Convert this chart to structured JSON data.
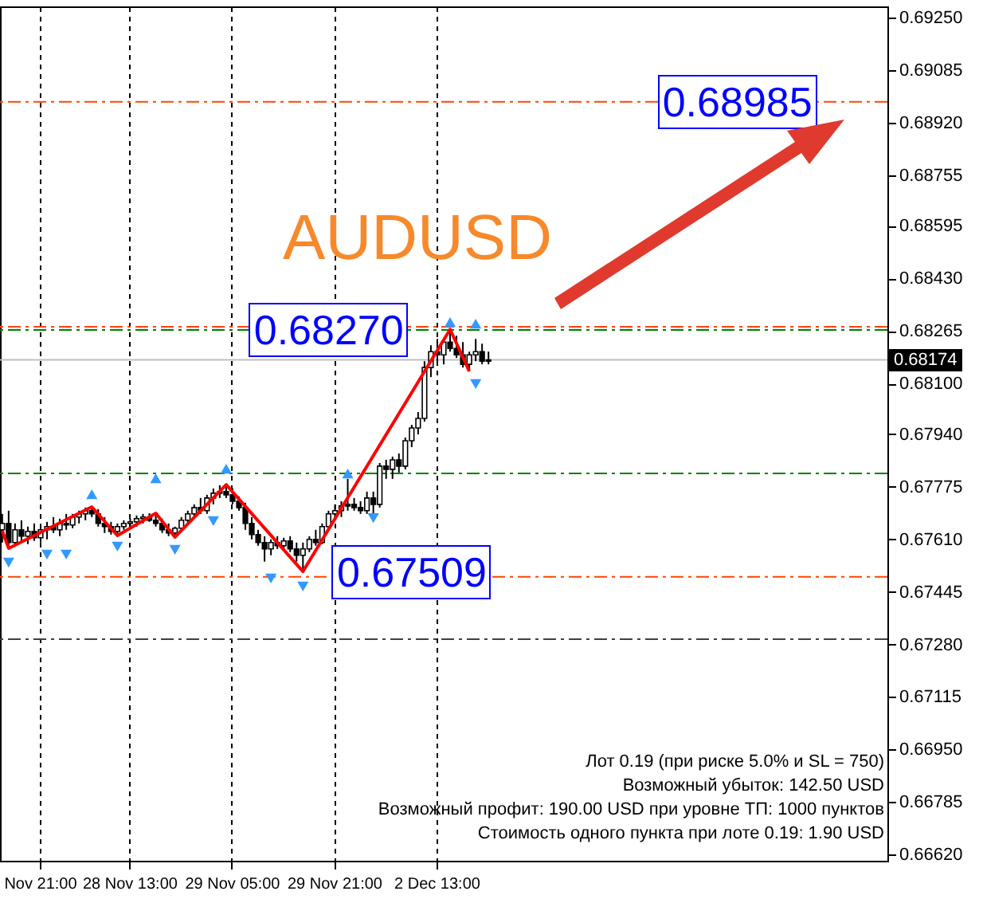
{
  "chart_data": {
    "type": "candlestick",
    "title": "AUDUSD",
    "categories": [
      null,
      null,
      null,
      null,
      null,
      null,
      "Nov 21:00",
      null,
      null,
      null,
      null,
      null,
      null,
      null,
      null,
      null,
      null,
      null,
      null,
      null,
      "28 Nov 13:00",
      null,
      null,
      null,
      null,
      null,
      null,
      null,
      null,
      null,
      null,
      null,
      null,
      null,
      null,
      null,
      "29 Nov 05:00",
      null,
      null,
      null,
      null,
      null,
      null,
      null,
      null,
      null,
      null,
      null,
      null,
      null,
      null,
      null,
      "29 Nov 21:00",
      null,
      null,
      null,
      null,
      null,
      null,
      null,
      null,
      null,
      null,
      null,
      null,
      null,
      null,
      null,
      "2 Dec 13:00",
      null,
      null,
      null,
      null,
      null,
      null,
      null,
      null,
      null,
      null,
      null,
      null,
      null,
      null,
      null,
      null,
      null,
      null,
      null,
      null,
      null,
      null,
      null,
      null,
      null,
      null,
      null,
      null,
      null,
      null,
      null,
      null,
      null,
      null,
      null,
      null,
      null,
      null,
      null,
      null,
      null,
      null,
      null,
      null,
      null,
      null,
      null,
      null,
      null,
      null,
      null,
      null,
      null,
      null,
      null,
      null,
      null,
      null,
      null,
      null,
      null,
      null,
      null,
      null,
      null,
      null,
      null,
      null,
      null,
      null
    ],
    "ohlc": [
      [
        0.6764,
        0.6769,
        0.676,
        0.6766
      ],
      [
        0.6766,
        0.677,
        0.67582,
        0.676
      ],
      [
        0.676,
        0.6766,
        0.6759,
        0.6764
      ],
      [
        0.6764,
        0.6767,
        0.676,
        0.6762
      ],
      [
        0.6762,
        0.6765,
        0.67595,
        0.67635
      ],
      [
        0.67635,
        0.6766,
        0.67605,
        0.67615
      ],
      [
        0.67615,
        0.6765,
        0.676,
        0.6764
      ],
      [
        0.6764,
        0.67665,
        0.6761,
        0.6765
      ],
      [
        0.6765,
        0.6768,
        0.6763,
        0.6764
      ],
      [
        0.6764,
        0.67675,
        0.6762,
        0.6766
      ],
      [
        0.6766,
        0.6769,
        0.6764,
        0.67655
      ],
      [
        0.67655,
        0.6769,
        0.67645,
        0.6768
      ],
      [
        0.6768,
        0.677,
        0.6766,
        0.6769
      ],
      [
        0.6769,
        0.6771,
        0.6767,
        0.677
      ],
      [
        0.677,
        0.67712,
        0.6768,
        0.6769
      ],
      [
        0.6769,
        0.67705,
        0.6765,
        0.6766
      ],
      [
        0.6766,
        0.6768,
        0.6763,
        0.6765
      ],
      [
        0.6765,
        0.67665,
        0.67625,
        0.67635
      ],
      [
        0.67635,
        0.6766,
        0.67622,
        0.6765
      ],
      [
        0.6765,
        0.6767,
        0.6764,
        0.6766
      ],
      [
        0.6766,
        0.67675,
        0.67645,
        0.67665
      ],
      [
        0.67665,
        0.67685,
        0.6765,
        0.67675
      ],
      [
        0.67675,
        0.6769,
        0.6766,
        0.6768
      ],
      [
        0.6768,
        0.67692,
        0.67665,
        0.6767
      ],
      [
        0.6767,
        0.67692,
        0.6765,
        0.6766
      ],
      [
        0.6766,
        0.67675,
        0.6763,
        0.6764
      ],
      [
        0.6764,
        0.6766,
        0.6762,
        0.6763
      ],
      [
        0.6763,
        0.6765,
        0.67617,
        0.67645
      ],
      [
        0.67645,
        0.6768,
        0.6764,
        0.6767
      ],
      [
        0.6767,
        0.677,
        0.6766,
        0.6769
      ],
      [
        0.6769,
        0.6772,
        0.6768,
        0.6771
      ],
      [
        0.6771,
        0.6774,
        0.6769,
        0.677
      ],
      [
        0.677,
        0.6775,
        0.6769,
        0.6774
      ],
      [
        0.6774,
        0.6777,
        0.6772,
        0.67755
      ],
      [
        0.67755,
        0.6778,
        0.6774,
        0.6776
      ],
      [
        0.6776,
        0.67782,
        0.6774,
        0.6775
      ],
      [
        0.6775,
        0.6777,
        0.6772,
        0.6773
      ],
      [
        0.6773,
        0.67745,
        0.677,
        0.6771
      ],
      [
        0.6771,
        0.67725,
        0.6764,
        0.6766
      ],
      [
        0.6766,
        0.6768,
        0.6761,
        0.67625
      ],
      [
        0.67625,
        0.6764,
        0.6759,
        0.676
      ],
      [
        0.676,
        0.6762,
        0.6754,
        0.6758
      ],
      [
        0.6758,
        0.6761,
        0.6756,
        0.676
      ],
      [
        0.676,
        0.6762,
        0.6758,
        0.6759
      ],
      [
        0.6759,
        0.67615,
        0.67575,
        0.67605
      ],
      [
        0.67605,
        0.6762,
        0.6757,
        0.6758
      ],
      [
        0.6758,
        0.676,
        0.6754,
        0.6756
      ],
      [
        0.6756,
        0.676,
        0.67509,
        0.6758
      ],
      [
        0.6758,
        0.6762,
        0.6757,
        0.6761
      ],
      [
        0.6761,
        0.6764,
        0.6759,
        0.676
      ],
      [
        0.676,
        0.6766,
        0.67595,
        0.6765
      ],
      [
        0.6765,
        0.677,
        0.6764,
        0.6769
      ],
      [
        0.6769,
        0.6772,
        0.6767,
        0.677
      ],
      [
        0.677,
        0.6773,
        0.6768,
        0.67715
      ],
      [
        0.67715,
        0.678,
        0.677,
        0.6772
      ],
      [
        0.6772,
        0.6774,
        0.677,
        0.6771
      ],
      [
        0.6771,
        0.6773,
        0.6769,
        0.677
      ],
      [
        0.677,
        0.6776,
        0.6769,
        0.6774
      ],
      [
        0.6774,
        0.6776,
        0.6769,
        0.6772
      ],
      [
        0.6772,
        0.6785,
        0.6771,
        0.6784
      ],
      [
        0.6784,
        0.6786,
        0.678,
        0.6783
      ],
      [
        0.6783,
        0.6787,
        0.678,
        0.6786
      ],
      [
        0.6786,
        0.6788,
        0.6782,
        0.6784
      ],
      [
        0.6784,
        0.6793,
        0.6783,
        0.6792
      ],
      [
        0.6792,
        0.6797,
        0.679,
        0.6796
      ],
      [
        0.6796,
        0.6801,
        0.6794,
        0.6799
      ],
      [
        0.6799,
        0.6817,
        0.6798,
        0.6815
      ],
      [
        0.6815,
        0.6822,
        0.6812,
        0.682
      ],
      [
        0.682,
        0.6824,
        0.6817,
        0.6819
      ],
      [
        0.6819,
        0.6824,
        0.6816,
        0.6823
      ],
      [
        0.6823,
        0.6827,
        0.682,
        0.6821
      ],
      [
        0.6821,
        0.6825,
        0.6818,
        0.6819
      ],
      [
        0.6819,
        0.6823,
        0.6815,
        0.6816
      ],
      [
        0.6816,
        0.682,
        0.68138,
        0.6819
      ],
      [
        0.6819,
        0.6824,
        0.6817,
        0.682
      ],
      [
        0.682,
        0.68225,
        0.6816,
        0.6817
      ],
      [
        0.6817,
        0.682,
        0.6816,
        0.68174
      ],
      null,
      null,
      null,
      null,
      null,
      null,
      null,
      null,
      null,
      null,
      null,
      null,
      null,
      null,
      null,
      null,
      null,
      null,
      null,
      null,
      null,
      null,
      null,
      null,
      null,
      null,
      null,
      null,
      null,
      null,
      null,
      null,
      null,
      null,
      null,
      null,
      null,
      null,
      null,
      null,
      null,
      null,
      null,
      null,
      null,
      null,
      null,
      null,
      null,
      null,
      null,
      null,
      null,
      null,
      null,
      null,
      null,
      null,
      null,
      null,
      null,
      null
    ],
    "series": [
      {
        "type": "line",
        "color": "#ff0000",
        "values": [
          0.67637,
          0.67582,
          null,
          null,
          null,
          null,
          null,
          null,
          null,
          null,
          null,
          null,
          null,
          null,
          0.67712,
          null,
          null,
          null,
          0.67622,
          null,
          null,
          null,
          null,
          null,
          0.67692,
          null,
          null,
          0.67617,
          null,
          null,
          null,
          null,
          null,
          null,
          null,
          0.67782,
          null,
          null,
          null,
          null,
          null,
          null,
          null,
          null,
          null,
          null,
          null,
          0.67509,
          null,
          null,
          null,
          null,
          null,
          null,
          null,
          null,
          null,
          null,
          null,
          null,
          null,
          null,
          null,
          null,
          null,
          null,
          null,
          null,
          null,
          null,
          0.6827,
          null,
          null,
          0.68138,
          null,
          null,
          null,
          null,
          null,
          null,
          null,
          null,
          null,
          null,
          null,
          null,
          null,
          null,
          null,
          null,
          null,
          null,
          null,
          null,
          null,
          null,
          null,
          null,
          null,
          null,
          null,
          null,
          null,
          null,
          null,
          null,
          null,
          null,
          null,
          null,
          null,
          null,
          null,
          null,
          null,
          null,
          null,
          null,
          null,
          null,
          null,
          null,
          null,
          null,
          null,
          null,
          null,
          null,
          null,
          null,
          null,
          null,
          null,
          null,
          null,
          null,
          null,
          null,
          null
        ]
      },
      {
        "type": "scatter",
        "marker": "triangle",
        "color": "#3399ff",
        "values": [
          null,
          null,
          null,
          null,
          null,
          null,
          null,
          null,
          null,
          null,
          null,
          null,
          null,
          null,
          0.67752,
          null,
          null,
          null,
          null,
          null,
          null,
          null,
          null,
          null,
          0.67802,
          null,
          null,
          null,
          null,
          null,
          null,
          null,
          null,
          null,
          null,
          0.67832,
          null,
          null,
          null,
          null,
          null,
          null,
          null,
          null,
          null,
          null,
          null,
          null,
          null,
          null,
          null,
          null,
          null,
          null,
          0.67817,
          null,
          null,
          null,
          null,
          null,
          null,
          null,
          null,
          null,
          null,
          null,
          null,
          null,
          null,
          null,
          0.68293,
          null,
          null,
          null,
          0.68288,
          null,
          null,
          null,
          null,
          null,
          null,
          null,
          null,
          null,
          null,
          null,
          null,
          null,
          null,
          null,
          null,
          null,
          null,
          null,
          null,
          null,
          null,
          null,
          null,
          null,
          null,
          null,
          null,
          null,
          null,
          null,
          null,
          null,
          null,
          null,
          null,
          null,
          null,
          null,
          null,
          null,
          null,
          null,
          null,
          null,
          null,
          null,
          null,
          null,
          null,
          null,
          null,
          null,
          null,
          null,
          null,
          null,
          null,
          null,
          null,
          null,
          null,
          null,
          null
        ]
      },
      {
        "type": "scatter",
        "marker": "triangle",
        "color": "#3399ff",
        "values": [
          null,
          0.67537,
          null,
          null,
          null,
          null,
          null,
          0.67562,
          null,
          null,
          0.67562,
          null,
          null,
          null,
          null,
          null,
          null,
          null,
          0.67587,
          null,
          null,
          null,
          null,
          null,
          null,
          null,
          null,
          0.67577,
          null,
          null,
          null,
          null,
          null,
          0.67667,
          null,
          null,
          null,
          null,
          null,
          null,
          null,
          null,
          0.67487,
          null,
          null,
          null,
          null,
          0.67462,
          null,
          null,
          null,
          null,
          null,
          null,
          null,
          null,
          null,
          null,
          0.67677,
          null,
          null,
          null,
          null,
          null,
          null,
          null,
          null,
          null,
          null,
          null,
          null,
          null,
          null,
          null,
          0.68098,
          null,
          null,
          null,
          null,
          null,
          null,
          null,
          null,
          null,
          null,
          null,
          null,
          null,
          null,
          null,
          null,
          null,
          null,
          null,
          null,
          null,
          null,
          null,
          null,
          null,
          null,
          null,
          null,
          null,
          null,
          null,
          null,
          null,
          null,
          null,
          null,
          null,
          null,
          null,
          null,
          null,
          null,
          null,
          null,
          null,
          null,
          null,
          null,
          null,
          null,
          null,
          null,
          null,
          null,
          null,
          null,
          null,
          null,
          null,
          null,
          null,
          null,
          null,
          null
        ]
      }
    ],
    "ylim": [
      0.666,
      0.69285
    ],
    "yticks": [
      {
        "value": 0.6925,
        "label": "0.69250"
      },
      0.69085,
      {
        "value": 0.6892,
        "label": "0.68920"
      },
      0.68755,
      0.68595,
      {
        "value": 0.6843,
        "label": "0.68430"
      },
      0.68265,
      {
        "value": 0.681,
        "label": "0.68100"
      },
      {
        "value": 0.6794,
        "label": "0.67940"
      },
      0.67775,
      {
        "value": 0.6761,
        "label": "0.67610"
      },
      0.67445,
      {
        "value": 0.6728,
        "label": "0.67280"
      },
      0.67115,
      {
        "value": 0.6695,
        "label": "0.66950"
      },
      0.66785,
      {
        "value": 0.6662,
        "label": "0.66620"
      }
    ],
    "grid": "x",
    "ref_lines": [
      {
        "axis": "y",
        "value": 0.68985,
        "color": "#ff4500",
        "line_style": "dashed"
      },
      {
        "axis": "y",
        "value": 0.68278,
        "color": "#ff4500",
        "line_style": "dashed"
      },
      {
        "axis": "y",
        "value": 0.68268,
        "color": "#008000",
        "line_style": "dashed"
      },
      {
        "axis": "y",
        "value": 0.68174,
        "label": "0.68174",
        "color": "#c0c0c0",
        "line_style": "solid"
      },
      {
        "axis": "y",
        "value": 0.67817,
        "color": "#008000",
        "line_style": "dashed"
      },
      {
        "axis": "y",
        "value": 0.67492,
        "color": "#ff4500",
        "line_style": "dashed"
      },
      {
        "axis": "y",
        "value": 0.67296,
        "color": "#404040",
        "line_style": "dashed"
      }
    ],
    "annotations": [
      {
        "text": "0.68985",
        "y": 0.68985
      },
      {
        "text": "0.68270",
        "y": 0.6827
      },
      {
        "text": "0.67509",
        "y": 0.67509
      },
      "Лот 0.19 (при риске 5.0% и SL = 750)",
      "Возможный убыток: 142.50 USD",
      "Возможный профит: 190.00 USD при уровне ТП: 1000 пунктов",
      "Стоимость одного пункта при лоте 0.19: 1.90 USD"
    ]
  }
}
